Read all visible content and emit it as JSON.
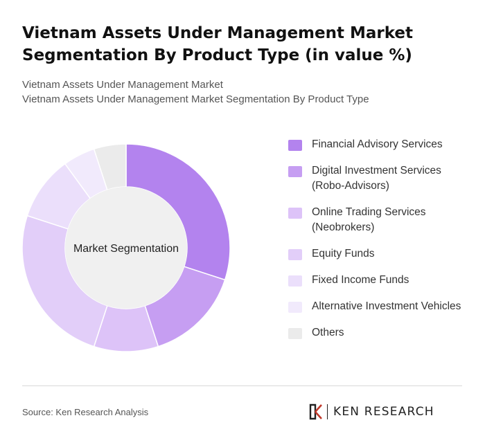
{
  "header": {
    "title": "Vietnam Assets Under Management Market Segmentation By Product Type (in value %)",
    "subtitle_line1": "Vietnam Assets Under Management Market",
    "subtitle_line2": "Vietnam Assets Under Management Market Segmentation By Product Type"
  },
  "chart_data": {
    "type": "pie",
    "donut": true,
    "center_label": "Market Segmentation",
    "categories": [
      "Financial Advisory Services",
      "Digital Investment Services (Robo-Advisors)",
      "Online Trading Services (Neobrokers)",
      "Equity Funds",
      "Fixed Income Funds",
      "Alternative Investment Vehicles",
      "Others"
    ],
    "values": [
      30,
      15,
      10,
      25,
      10,
      5,
      5
    ],
    "colors": [
      "#b383ee",
      "#c69ef2",
      "#ddc3f8",
      "#e2cef9",
      "#ebdffb",
      "#f1eafc",
      "#ebebeb"
    ],
    "legend_position": "right"
  },
  "footer": {
    "source": "Source: Ken Research Analysis",
    "logo_text": "KEN RESEARCH"
  }
}
